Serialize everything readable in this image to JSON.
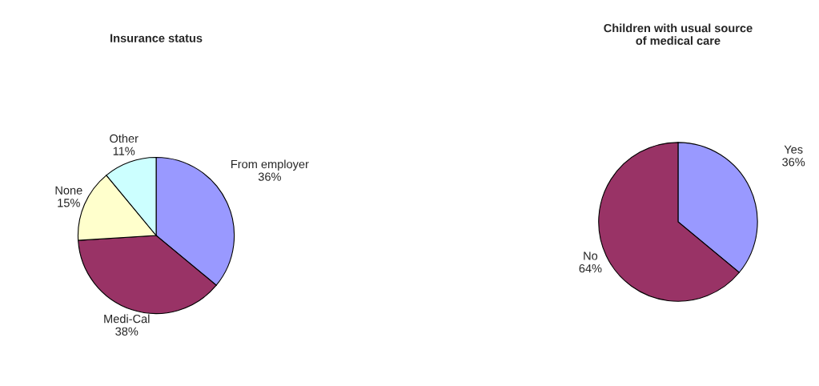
{
  "chart_data": [
    {
      "type": "pie",
      "title": "Insurance status",
      "categories": [
        "From employer",
        "Medi-Cal",
        "None",
        "Other"
      ],
      "values": [
        36,
        38,
        15,
        11
      ],
      "value_labels": [
        "36%",
        "38%",
        "15%",
        "11%"
      ],
      "colors": [
        "#9999ff",
        "#993366",
        "#ffffcc",
        "#ccffff"
      ]
    },
    {
      "type": "pie",
      "title": "Children with usual source\nof medical care",
      "categories": [
        "Yes",
        "No"
      ],
      "values": [
        36,
        64
      ],
      "value_labels": [
        "36%",
        "64%"
      ],
      "colors": [
        "#9999ff",
        "#993366"
      ]
    }
  ]
}
